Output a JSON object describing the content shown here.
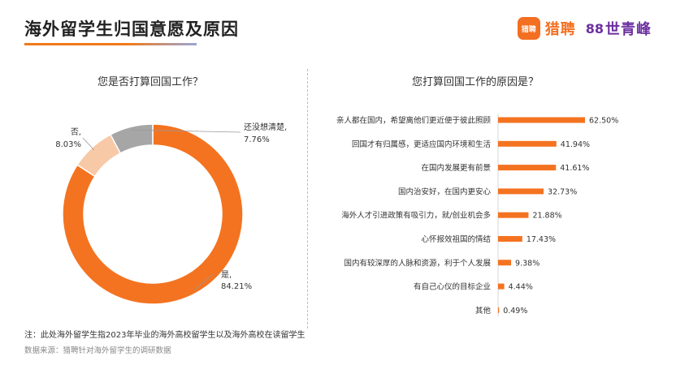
{
  "header": {
    "title": "海外留学生归国意愿及原因",
    "logo_mark_text": "猎聘",
    "logo_name": "猎聘",
    "partner_icon": "88",
    "partner_name": "世青峰"
  },
  "chart_data": [
    {
      "type": "pie",
      "title": "您是否打算回国工作？",
      "categories": [
        "是",
        "否",
        "还没想清楚"
      ],
      "labels": [
        "是,",
        "否,",
        "还没想清楚,"
      ],
      "values": [
        84.21,
        8.03,
        7.76
      ],
      "value_labels": [
        "84.21%",
        "8.03%",
        "7.76%"
      ],
      "colors": [
        "#f47320",
        "#f8c9a6",
        "#a6a6a6"
      ],
      "style": "donut"
    },
    {
      "type": "bar",
      "orientation": "horizontal",
      "title": "您打算回国工作的原因是？",
      "categories": [
        "亲人都在国内，希望离他们更近便于彼此照顾",
        "回国才有归属感，更适应国内环境和生活",
        "在国内发展更有前景",
        "国内治安好，在国内更安心",
        "海外人才引进政策有吸引力，就/创业机会多",
        "心怀报效祖国的情结",
        "国内有较深厚的人脉和资源，利于个人发展",
        "有自己心仪的目标企业",
        "其他"
      ],
      "values": [
        62.5,
        41.94,
        41.61,
        32.73,
        21.88,
        17.43,
        9.38,
        4.44,
        0.49
      ],
      "value_labels": [
        "62.50%",
        "41.94%",
        "41.61%",
        "32.73%",
        "21.88%",
        "17.43%",
        "9.38%",
        "4.44%",
        "0.49%"
      ],
      "color": "#f47320",
      "xlim": [
        0,
        62.5
      ]
    }
  ],
  "footer": {
    "note": "注：此处海外留学生指2023年毕业的海外高校留学生以及海外高校在读留学生",
    "source": "数据来源：猎聘针对海外留学生的调研数据"
  }
}
